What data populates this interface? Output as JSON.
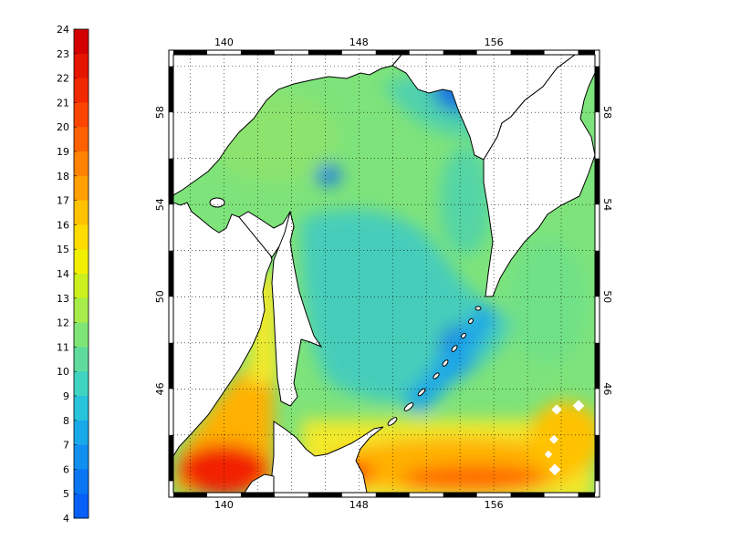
{
  "colorbar": {
    "min": 4,
    "max": 24,
    "labels": [
      "24",
      "23",
      "22",
      "21",
      "20",
      "19",
      "18",
      "17",
      "16",
      "15",
      "14",
      "13",
      "12",
      "11",
      "10",
      "9",
      "8",
      "7",
      "6",
      "5",
      "4"
    ],
    "colors": [
      "#d40000",
      "#e51500",
      "#f22800",
      "#fb4500",
      "#ff6100",
      "#ff8200",
      "#ffa000",
      "#ffc200",
      "#ffdc00",
      "#f2f000",
      "#ccef1e",
      "#a6ec4a",
      "#80e577",
      "#5fdc9d",
      "#3fd4c2",
      "#28c4dc",
      "#18a9e9",
      "#108ff0",
      "#0a76f4",
      "#0660f7"
    ]
  },
  "map": {
    "lon_ticks": [
      "140",
      "148",
      "156"
    ],
    "lat_ticks": [
      "58",
      "54",
      "50",
      "46"
    ],
    "lon_range": [
      137,
      162
    ],
    "lat_range": [
      41.5,
      60.5
    ],
    "colors": {
      "frame": "#000000",
      "land": "#ffffff",
      "sea_base": "#7ee37a",
      "sea_cold": "#3cc9c5",
      "sea_colder": "#1aa7e8",
      "sea_coldest": "#1b74df",
      "sea_warm": "#f2e92c",
      "sea_warmer": "#ffb000",
      "sea_hot": "#ff6a00",
      "sea_hottest": "#f22000"
    }
  }
}
